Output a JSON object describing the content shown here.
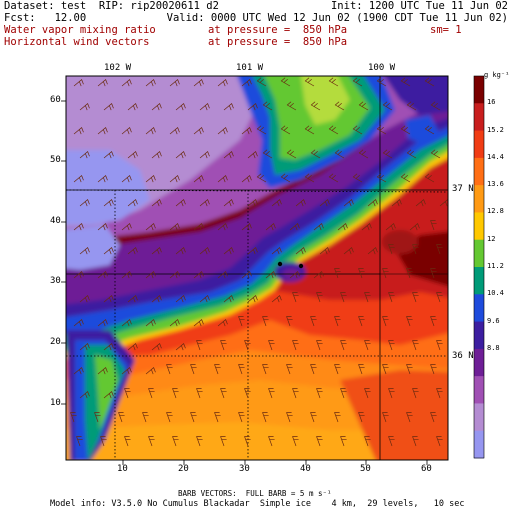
{
  "header": {
    "dataset": "Dataset: test  RIP: rip20020611 d2",
    "init": "Init: 1200 UTC Tue 11 Jun 02",
    "fcst": "Fcst:   12.00",
    "valid": "Valid: 0000 UTC Wed 12 Jun 02 (1900 CDT Tue 11 Jun 02)",
    "field1": "Water vapor mixing ratio",
    "field1_pressure": "at pressure =  850 hPa",
    "field1_units": "sm= 1",
    "field2": "Horizontal wind vectors",
    "field2_pressure": "at pressure =  850 hPa"
  },
  "map": {
    "lon_labels": [
      "102 W",
      "101 W",
      "100 W"
    ],
    "lat_labels": [
      "37 N",
      "36 N"
    ],
    "x_ticks": [
      "10",
      "20",
      "30",
      "40",
      "50",
      "60"
    ],
    "y_ticks": [
      "60",
      "50",
      "40",
      "30",
      "20",
      "10"
    ]
  },
  "colorbar": {
    "unit": "g kg⁻¹",
    "labels": [
      "16",
      "15.2",
      "14.4",
      "13.6",
      "12.8",
      "12",
      "11.2",
      "10.4",
      "9.6",
      "8.8"
    ],
    "colors": [
      "#7a0000",
      "#c81e1e",
      "#f03c14",
      "#ff6e14",
      "#ff9a14",
      "#ffc800",
      "#64c832",
      "#009b78",
      "#1e4bdc",
      "#3c1ea0",
      "#6e1e96",
      "#a050b4",
      "#b48cd2",
      "#9696f0"
    ]
  },
  "footer": {
    "barbs": "BARB VECTORS:  FULL BARB = 5 m s⁻¹",
    "model_info": "Model info: V3.5.0 No Cumulus Blackadar  Simple ice    4 km,  29 levels,   10 sec"
  }
}
